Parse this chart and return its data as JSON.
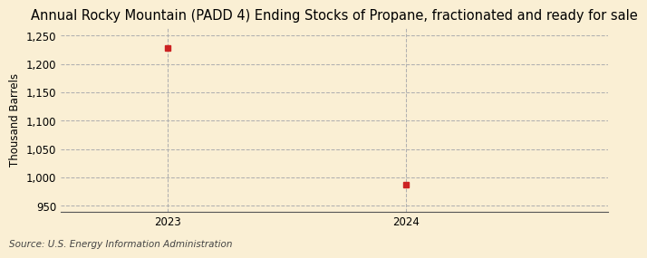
{
  "title": "Annual Rocky Mountain (PADD 4) Ending Stocks of Propane, fractionated and ready for sale",
  "ylabel": "Thousand Barrels",
  "source": "Source: U.S. Energy Information Administration",
  "x_values": [
    2023,
    2024
  ],
  "y_values": [
    1228,
    988
  ],
  "xlim": [
    2022.55,
    2024.85
  ],
  "ylim": [
    940,
    1265
  ],
  "yticks": [
    950,
    1000,
    1050,
    1100,
    1150,
    1200,
    1250
  ],
  "xticks": [
    2023,
    2024
  ],
  "marker_color": "#cc2222",
  "marker_size": 4,
  "grid_color": "#b0b0b0",
  "bg_color": "#faefd4",
  "spine_color": "#555555",
  "title_fontsize": 10.5,
  "label_fontsize": 8.5,
  "tick_fontsize": 8.5,
  "source_fontsize": 7.5
}
